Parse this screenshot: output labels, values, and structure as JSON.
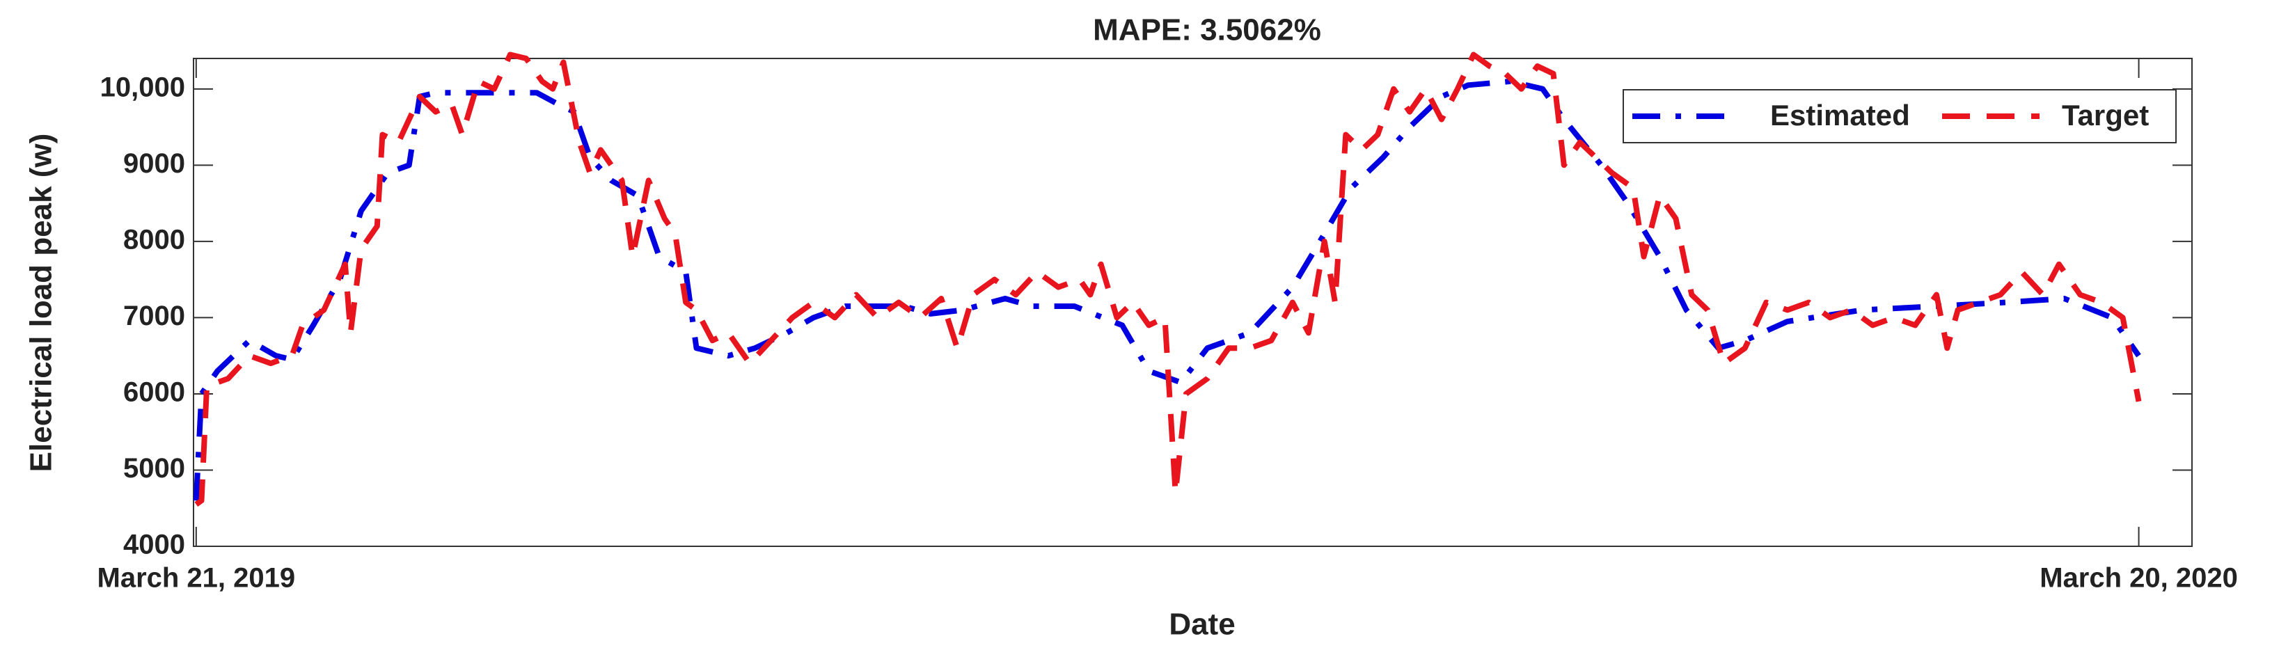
{
  "chart_data": {
    "type": "line",
    "title": "MAPE: 3.5062%",
    "x_label": "Date",
    "y_label": "Electrical load peak (w)",
    "xlim": [
      -0.5,
      375
    ],
    "xticks": [
      {
        "value": 0,
        "label": "March 21, 2019"
      },
      {
        "value": 365,
        "label": "March 20, 2020"
      }
    ],
    "ylim": [
      4000,
      10400
    ],
    "yticks": [
      4000,
      5000,
      6000,
      7000,
      8000,
      9000,
      {
        "value": 10000,
        "label": "10,000"
      }
    ],
    "legend": "upper right",
    "series": [
      {
        "name": "Estimated",
        "color": "#0000e0",
        "x": [
          0,
          1,
          4,
          10,
          15,
          18,
          22,
          27,
          31,
          36,
          40,
          42,
          45,
          56,
          64,
          68,
          71,
          74,
          78,
          83,
          87,
          92,
          94,
          100,
          105,
          111,
          116,
          122,
          133,
          138,
          144,
          152,
          157,
          165,
          174,
          179,
          185,
          190,
          198,
          206,
          212,
          217,
          223,
          228,
          234,
          239,
          247,
          253,
          257,
          264,
          269,
          275,
          280,
          286,
          291,
          299,
          313,
          327,
          340,
          351,
          360,
          365
        ],
        "values": [
          4600,
          6000,
          6300,
          6700,
          6500,
          6450,
          6900,
          7500,
          8400,
          8900,
          9000,
          9900,
          9950,
          9950,
          9950,
          9800,
          9700,
          9100,
          8800,
          8600,
          7800,
          7600,
          6600,
          6500,
          6600,
          6800,
          7000,
          7150,
          7150,
          7050,
          7100,
          7250,
          7150,
          7150,
          6900,
          6300,
          6150,
          6600,
          6800,
          7400,
          8100,
          8700,
          9100,
          9500,
          9900,
          10050,
          10100,
          10000,
          9600,
          9000,
          8500,
          7800,
          7100,
          6600,
          6700,
          6950,
          7100,
          7150,
          7200,
          7250,
          7000,
          6500
        ]
      },
      {
        "name": "Target",
        "color": "#e8141e",
        "x": [
          0,
          1,
          2,
          6,
          10,
          14,
          18,
          20,
          24,
          28,
          29,
          31,
          34,
          35,
          38,
          42,
          45,
          48,
          50,
          53,
          56,
          59,
          62,
          65,
          67,
          69,
          72,
          74,
          76,
          80,
          82,
          85,
          88,
          90,
          92,
          94,
          97,
          100,
          104,
          108,
          112,
          116,
          120,
          124,
          128,
          132,
          136,
          140,
          143,
          146,
          150,
          154,
          158,
          162,
          166,
          168,
          170,
          173,
          176,
          179,
          182,
          184,
          186,
          190,
          194,
          198,
          202,
          206,
          209,
          212,
          214,
          216,
          219,
          222,
          225,
          228,
          231,
          234,
          237,
          240,
          243,
          246,
          249,
          252,
          255,
          257,
          260,
          263,
          266,
          270,
          272,
          275,
          278,
          281,
          284,
          287,
          291,
          295,
          299,
          303,
          307,
          311,
          315,
          319,
          323,
          327,
          329,
          331,
          335,
          339,
          343,
          347,
          350,
          354,
          358,
          362,
          365
        ],
        "values": [
          4550,
          4600,
          6100,
          6200,
          6500,
          6400,
          6500,
          6900,
          7100,
          7700,
          6800,
          7900,
          8200,
          9400,
          9300,
          9900,
          9700,
          9800,
          9400,
          10100,
          10000,
          10450,
          10400,
          10100,
          10000,
          10350,
          9300,
          8900,
          9200,
          8800,
          7800,
          8800,
          8300,
          8100,
          7200,
          7100,
          6700,
          6800,
          6400,
          6700,
          7000,
          7200,
          7000,
          7300,
          7000,
          7200,
          7000,
          7250,
          6600,
          7300,
          7500,
          7300,
          7600,
          7400,
          7500,
          7300,
          7700,
          7000,
          7200,
          6900,
          7000,
          4700,
          6000,
          6200,
          6600,
          6600,
          6700,
          7200,
          6800,
          8000,
          7200,
          9400,
          9200,
          9400,
          10000,
          9700,
          10000,
          9600,
          10000,
          10450,
          10300,
          10200,
          10000,
          10300,
          10200,
          9000,
          9300,
          9100,
          8900,
          8700,
          7800,
          8600,
          8300,
          7300,
          7100,
          6400,
          6600,
          7200,
          7100,
          7200,
          7000,
          7100,
          6900,
          7000,
          6900,
          7300,
          6600,
          7100,
          7200,
          7300,
          7600,
          7300,
          7700,
          7300,
          7200,
          7000,
          5900
        ]
      }
    ]
  }
}
